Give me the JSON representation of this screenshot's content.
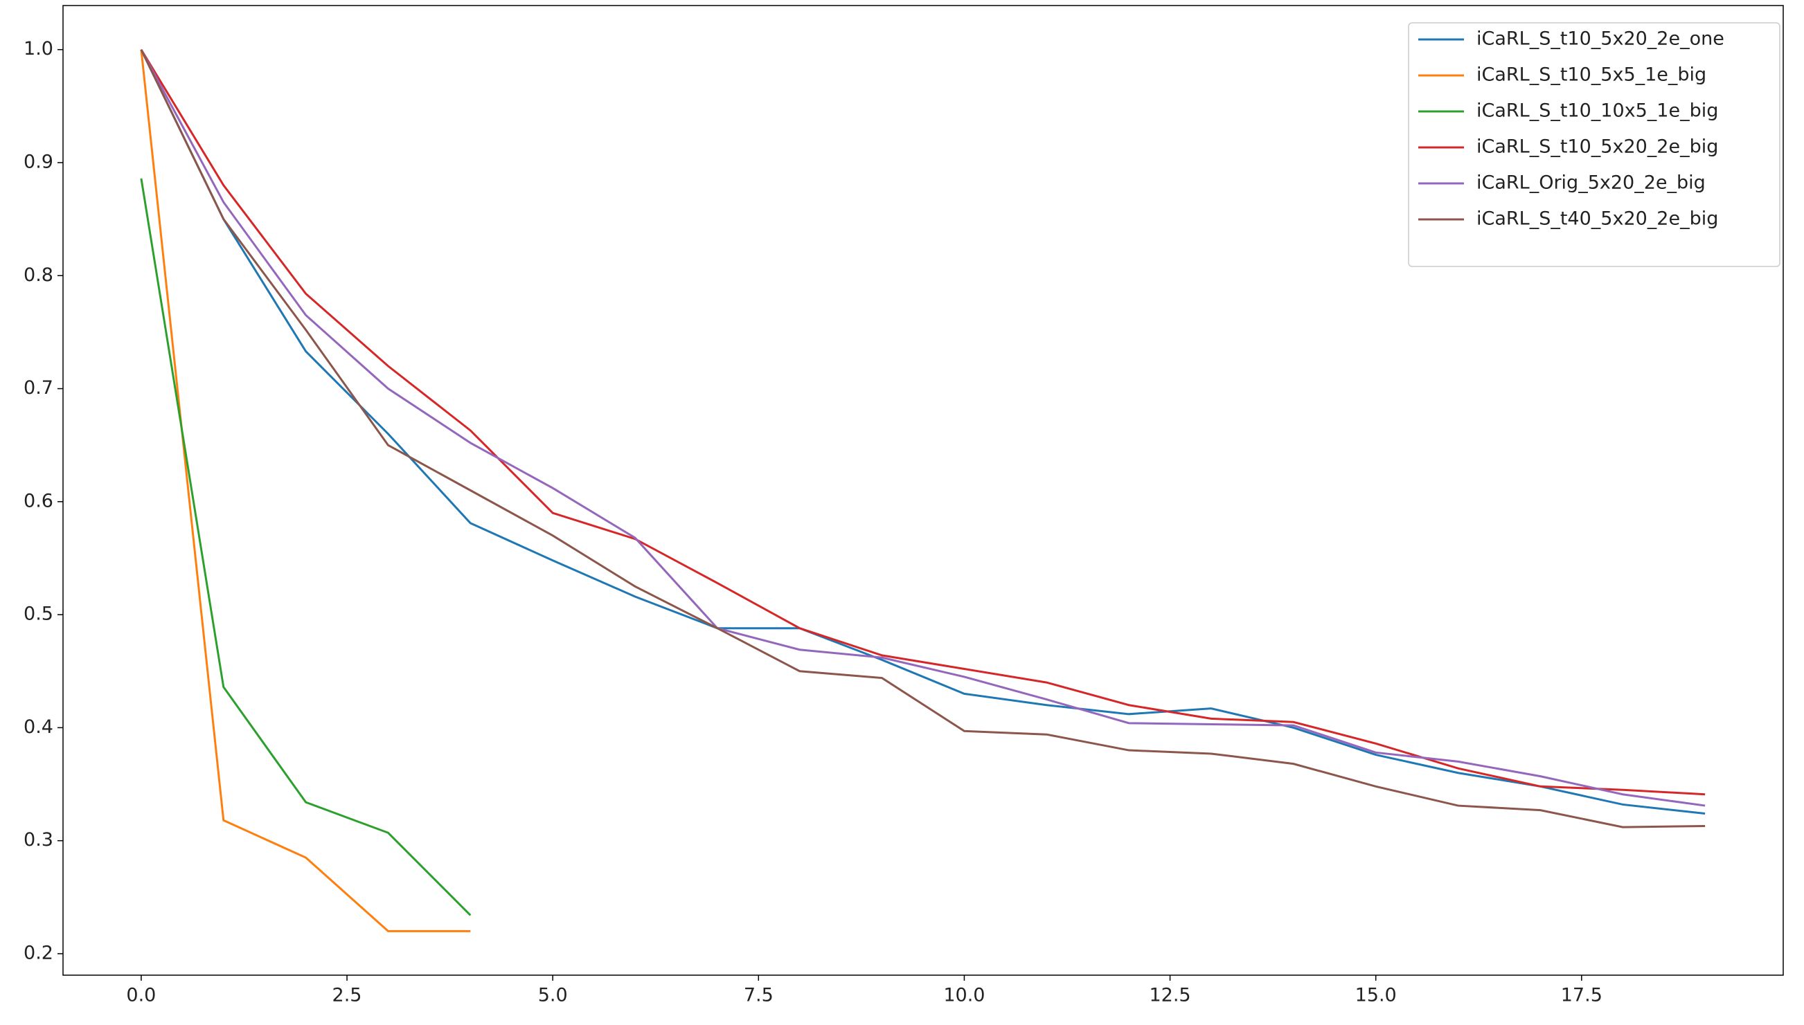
{
  "chart_data": {
    "type": "line",
    "xlim": [
      -0.95,
      19.95
    ],
    "ylim": [
      0.181,
      1.039
    ],
    "xticks": [
      {
        "value": 0,
        "label": "0.0"
      },
      2.5,
      {
        "value": 5,
        "label": "5.0"
      },
      7.5,
      {
        "value": 10,
        "label": "10.0"
      },
      12.5,
      {
        "value": 15,
        "label": "15.0"
      },
      17.5
    ],
    "yticks": [
      0.2,
      0.3,
      0.4,
      0.5,
      0.6,
      0.7,
      0.8,
      0.9,
      {
        "value": 1,
        "label": "1.0"
      }
    ],
    "grid": false,
    "legend": "upper right",
    "series": [
      {
        "name": "iCaRL_S_t10_5x20_2e_one",
        "color": "#1f77b4",
        "x": [
          0,
          1,
          2,
          3,
          4,
          5,
          6,
          7,
          8,
          9,
          10,
          11,
          12,
          13,
          14,
          15,
          16,
          17,
          18,
          19
        ],
        "values": [
          1.0,
          0.85,
          0.733,
          0.66,
          0.581,
          0.548,
          0.516,
          0.488,
          0.488,
          0.46,
          0.43,
          0.42,
          0.412,
          0.417,
          0.4,
          0.376,
          0.36,
          0.348,
          0.332,
          0.324
        ]
      },
      {
        "name": "iCaRL_S_t10_5x5_1e_big",
        "color": "#ff7f0e",
        "x": [
          0,
          1,
          2,
          3,
          4
        ],
        "values": [
          1.0,
          0.318,
          0.285,
          0.22,
          0.22
        ]
      },
      {
        "name": "iCaRL_S_t10_10x5_1e_big",
        "color": "#2ca02c",
        "x": [
          0,
          1,
          2,
          3,
          4
        ],
        "values": [
          0.886,
          0.436,
          0.334,
          0.307,
          0.234
        ]
      },
      {
        "name": "iCaRL_S_t10_5x20_2e_big",
        "color": "#d62728",
        "x": [
          0,
          1,
          2,
          3,
          4,
          5,
          6,
          7,
          8,
          9,
          10,
          11,
          12,
          13,
          14,
          15,
          16,
          17,
          18,
          19
        ],
        "values": [
          1.0,
          0.88,
          0.784,
          0.72,
          0.663,
          0.59,
          0.567,
          0.528,
          0.488,
          0.464,
          0.452,
          0.44,
          0.42,
          0.408,
          0.405,
          0.386,
          0.364,
          0.348,
          0.345,
          0.341
        ]
      },
      {
        "name": "iCaRL_Orig_5x20_2e_big",
        "color": "#9467bd",
        "x": [
          0,
          1,
          2,
          3,
          4,
          5,
          6,
          7,
          8,
          9,
          10,
          11,
          12,
          13,
          14,
          15,
          16,
          17,
          18,
          19
        ],
        "values": [
          1.0,
          0.865,
          0.765,
          0.7,
          0.652,
          0.612,
          0.568,
          0.488,
          0.469,
          0.462,
          0.445,
          0.425,
          0.404,
          0.403,
          0.402,
          0.378,
          0.37,
          0.357,
          0.341,
          0.331
        ]
      },
      {
        "name": "iCaRL_S_t40_5x20_2e_big",
        "color": "#8c564b",
        "x": [
          0,
          1,
          2,
          3,
          4,
          5,
          6,
          7,
          8,
          9,
          10,
          11,
          12,
          13,
          14,
          15,
          16,
          17,
          18,
          19
        ],
        "values": [
          1.0,
          0.85,
          0.752,
          0.65,
          0.61,
          0.57,
          0.525,
          0.488,
          0.45,
          0.444,
          0.397,
          0.394,
          0.38,
          0.377,
          0.368,
          0.348,
          0.331,
          0.327,
          0.312,
          0.313
        ]
      }
    ]
  }
}
